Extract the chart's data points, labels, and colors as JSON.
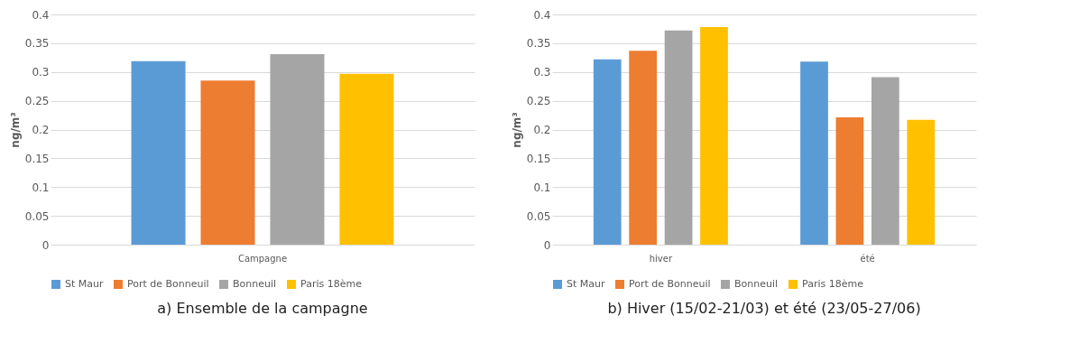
{
  "chart_data": [
    {
      "type": "bar",
      "title": "a)    Ensemble de la campagne",
      "ylabel": "ng/m³",
      "categories": [
        "Campagne"
      ],
      "ylim": [
        0,
        0.4
      ],
      "yticks": [
        0,
        0.05,
        0.1,
        0.15,
        0.2,
        0.25,
        0.3,
        0.35,
        0.4
      ],
      "grid": "y",
      "legend": "bottom",
      "series": [
        {
          "name": "St Maur",
          "color": "#5b9bd5",
          "values": [
            0.319
          ]
        },
        {
          "name": "Port de Bonneuil",
          "color": "#ed7d31",
          "values": [
            0.285
          ]
        },
        {
          "name": "Bonneuil",
          "color": "#a5a5a5",
          "values": [
            0.331
          ]
        },
        {
          "name": "Paris 18ème",
          "color": "#ffc000",
          "values": [
            0.297
          ]
        }
      ]
    },
    {
      "type": "bar",
      "title": "b)    Hiver (15/02-21/03) et été (23/05-27/06)",
      "ylabel": "ng/m³",
      "categories": [
        "hiver",
        "été"
      ],
      "ylim": [
        0,
        0.4
      ],
      "yticks": [
        0,
        0.05,
        0.1,
        0.15,
        0.2,
        0.25,
        0.3,
        0.35,
        0.4
      ],
      "grid": "y",
      "legend": "bottom",
      "series": [
        {
          "name": "St Maur",
          "color": "#5b9bd5",
          "values": [
            0.322,
            0.318
          ]
        },
        {
          "name": "Port de Bonneuil",
          "color": "#ed7d31",
          "values": [
            0.337,
            0.221
          ]
        },
        {
          "name": "Bonneuil",
          "color": "#a5a5a5",
          "values": [
            0.372,
            0.291
          ]
        },
        {
          "name": "Paris 18ème",
          "color": "#ffc000",
          "values": [
            0.378,
            0.217
          ]
        }
      ]
    }
  ]
}
